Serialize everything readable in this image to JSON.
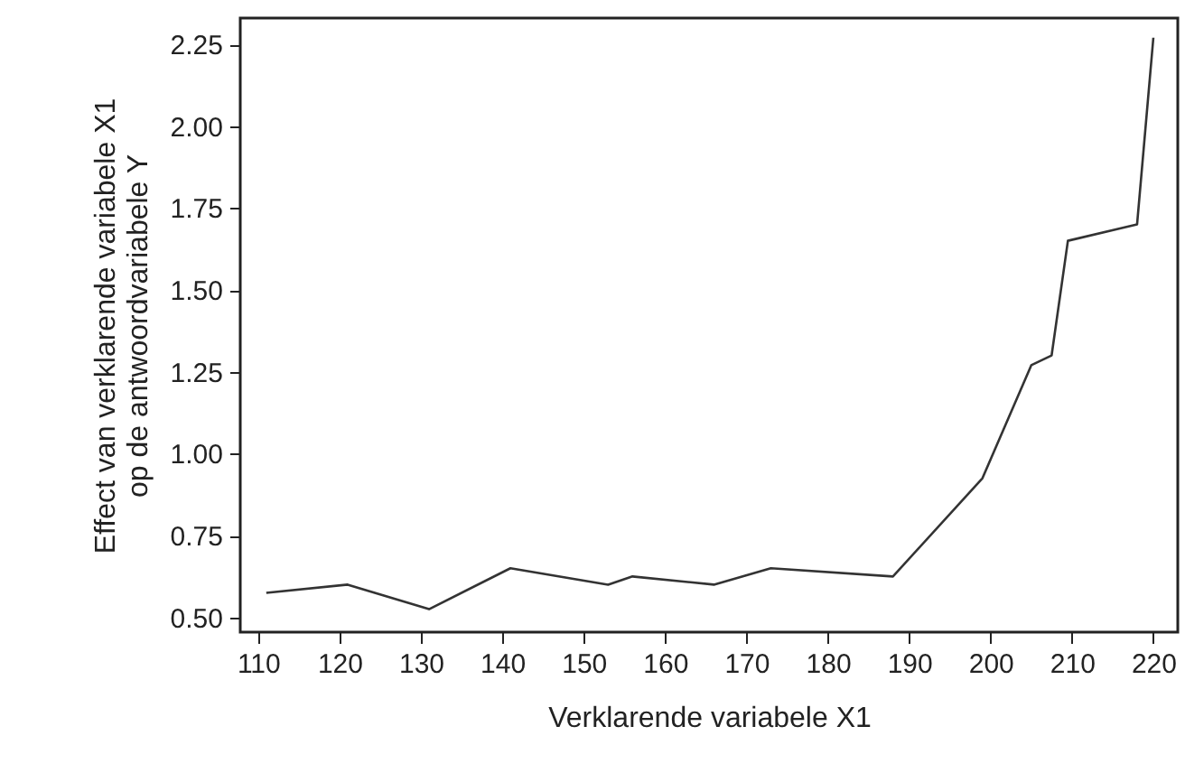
{
  "chart_data": {
    "type": "line",
    "xlabel": "Verklarende variabele X1",
    "ylabel": "Effect van verklarende variabele X1\nop de antwoordvariabele Y",
    "x": [
      111,
      121,
      131,
      141,
      153,
      156,
      166,
      173,
      188,
      199,
      205,
      207.5,
      209.5,
      218,
      220
    ],
    "series": [
      {
        "color": "#333333",
        "values": [
          0.575,
          0.6,
          0.525,
          0.65,
          0.6,
          0.625,
          0.6,
          0.65,
          0.625,
          0.925,
          1.27,
          1.3,
          1.65,
          1.7,
          2.27
        ]
      }
    ],
    "xlim": [
      107.8,
      223
    ],
    "ylim": [
      0.455,
      2.33
    ],
    "xticks": [
      110,
      120,
      130,
      140,
      150,
      160,
      170,
      180,
      190,
      200,
      210,
      220
    ],
    "yticks": [
      {
        "value": 0.5,
        "label": "0.50"
      },
      0.75,
      {
        "value": 1,
        "label": "1.00"
      },
      1.25,
      {
        "value": 1.5,
        "label": "1.50"
      },
      1.75,
      {
        "value": 2,
        "label": "2.00"
      },
      2.25
    ],
    "grid": false,
    "marker": "none",
    "line_style": "solid"
  }
}
